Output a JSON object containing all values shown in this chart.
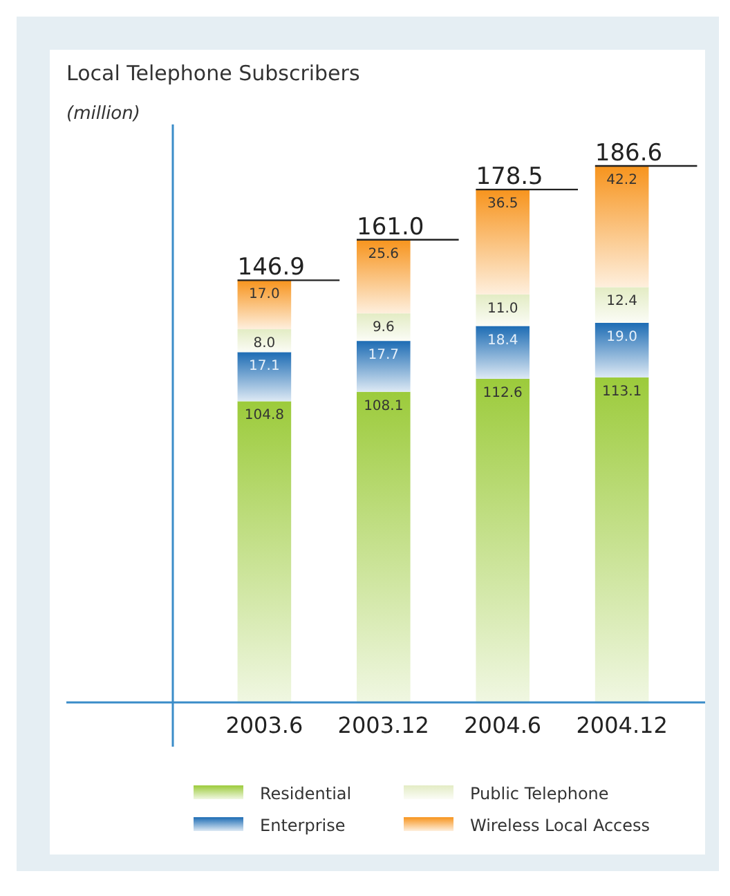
{
  "chart_data": {
    "type": "bar",
    "title": "Local Telephone Subscribers",
    "ylabel": "(million)",
    "stacked": true,
    "legend": "bottom",
    "categories": [
      "2003.6",
      "2003.12",
      "2004.6",
      "2004.12"
    ],
    "series": [
      {
        "name": "Residential",
        "color": "#9ccb3b",
        "values": [
          104.8,
          108.1,
          112.6,
          113.1
        ],
        "value_labels": [
          "104.8",
          "108.1",
          "112.6",
          "113.1"
        ]
      },
      {
        "name": "Enterprise",
        "color": "#1d6cb4",
        "values": [
          17.1,
          17.7,
          18.4,
          19.0
        ],
        "value_labels": [
          "17.1",
          "17.7",
          "18.4",
          "19.0"
        ]
      },
      {
        "name": "Public Telephone",
        "color": "#e3ecc4",
        "values": [
          8.0,
          9.6,
          11.0,
          12.4
        ],
        "value_labels": [
          "8.0",
          "9.6",
          "11.0",
          "12.4"
        ]
      },
      {
        "name": "Wireless Local Access",
        "color": "#f7941d",
        "values": [
          17.0,
          25.6,
          36.5,
          42.2
        ],
        "value_labels": [
          "17.0",
          "25.6",
          "36.5",
          "42.2"
        ]
      }
    ],
    "totals": [
      "146.9",
      "161.0",
      "178.5",
      "186.6"
    ]
  }
}
